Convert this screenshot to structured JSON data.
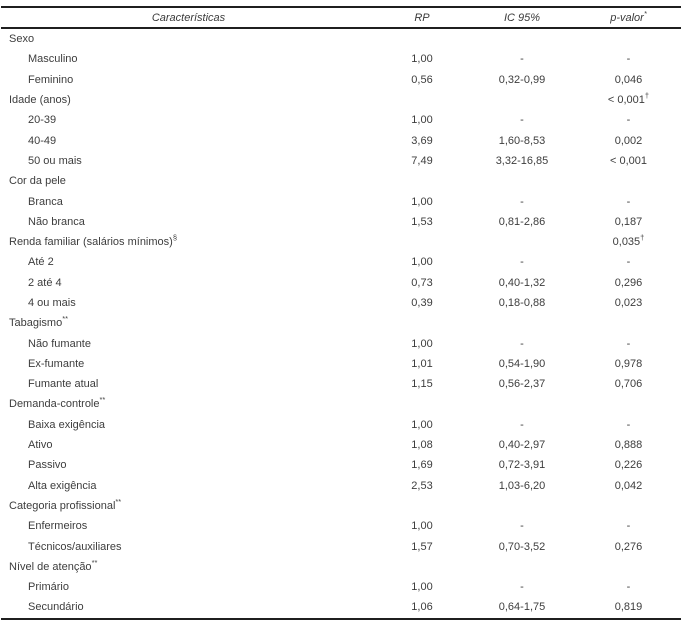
{
  "table": {
    "columns": [
      {
        "label": "Características",
        "sup": ""
      },
      {
        "label": "RP",
        "sup": ""
      },
      {
        "label": "IC 95%",
        "sup": ""
      },
      {
        "label": "p-valor",
        "sup": "*"
      }
    ],
    "rows": [
      {
        "label": "Sexo",
        "sup": "",
        "indent": false,
        "rp": "",
        "ic": "",
        "p": "",
        "psup": ""
      },
      {
        "label": "Masculino",
        "sup": "",
        "indent": true,
        "rp": "1,00",
        "ic": "-",
        "p": "-",
        "psup": ""
      },
      {
        "label": "Feminino",
        "sup": "",
        "indent": true,
        "rp": "0,56",
        "ic": "0,32-0,99",
        "p": "0,046",
        "psup": ""
      },
      {
        "label": "Idade (anos)",
        "sup": "",
        "indent": false,
        "rp": "",
        "ic": "",
        "p": "< 0,001",
        "psup": "†"
      },
      {
        "label": "20-39",
        "sup": "",
        "indent": true,
        "rp": "1,00",
        "ic": "-",
        "p": "-",
        "psup": ""
      },
      {
        "label": "40-49",
        "sup": "",
        "indent": true,
        "rp": "3,69",
        "ic": "1,60-8,53",
        "p": "0,002",
        "psup": ""
      },
      {
        "label": "50 ou mais",
        "sup": "",
        "indent": true,
        "rp": "7,49",
        "ic": "3,32-16,85",
        "p": "< 0,001",
        "psup": ""
      },
      {
        "label": "Cor da pele",
        "sup": "",
        "indent": false,
        "rp": "",
        "ic": "",
        "p": "",
        "psup": ""
      },
      {
        "label": "Branca",
        "sup": "",
        "indent": true,
        "rp": "1,00",
        "ic": "-",
        "p": "-",
        "psup": ""
      },
      {
        "label": "Não branca",
        "sup": "",
        "indent": true,
        "rp": "1,53",
        "ic": "0,81-2,86",
        "p": "0,187",
        "psup": ""
      },
      {
        "label": "Renda familiar (salários mínimos)",
        "sup": "§",
        "indent": false,
        "rp": "",
        "ic": "",
        "p": "0,035",
        "psup": "†"
      },
      {
        "label": "Até 2",
        "sup": "",
        "indent": true,
        "rp": "1,00",
        "ic": "-",
        "p": "-",
        "psup": ""
      },
      {
        "label": "2 até 4",
        "sup": "",
        "indent": true,
        "rp": "0,73",
        "ic": "0,40-1,32",
        "p": "0,296",
        "psup": ""
      },
      {
        "label": "4 ou mais",
        "sup": "",
        "indent": true,
        "rp": "0,39",
        "ic": "0,18-0,88",
        "p": "0,023",
        "psup": ""
      },
      {
        "label": "Tabagismo",
        "sup": "**",
        "indent": false,
        "rp": "",
        "ic": "",
        "p": "",
        "psup": ""
      },
      {
        "label": "Não fumante",
        "sup": "",
        "indent": true,
        "rp": "1,00",
        "ic": "-",
        "p": "-",
        "psup": ""
      },
      {
        "label": "Ex-fumante",
        "sup": "",
        "indent": true,
        "rp": "1,01",
        "ic": "0,54-1,90",
        "p": "0,978",
        "psup": ""
      },
      {
        "label": "Fumante atual",
        "sup": "",
        "indent": true,
        "rp": "1,15",
        "ic": "0,56-2,37",
        "p": "0,706",
        "psup": ""
      },
      {
        "label": "Demanda-controle",
        "sup": "**",
        "indent": false,
        "rp": "",
        "ic": "",
        "p": "",
        "psup": ""
      },
      {
        "label": "Baixa exigência",
        "sup": "",
        "indent": true,
        "rp": "1,00",
        "ic": "-",
        "p": "-",
        "psup": ""
      },
      {
        "label": "Ativo",
        "sup": "",
        "indent": true,
        "rp": "1,08",
        "ic": "0,40-2,97",
        "p": "0,888",
        "psup": ""
      },
      {
        "label": "Passivo",
        "sup": "",
        "indent": true,
        "rp": "1,69",
        "ic": "0,72-3,91",
        "p": "0,226",
        "psup": ""
      },
      {
        "label": "Alta exigência",
        "sup": "",
        "indent": true,
        "rp": "2,53",
        "ic": "1,03-6,20",
        "p": "0,042",
        "psup": ""
      },
      {
        "label": "Categoria profissional",
        "sup": "**",
        "indent": false,
        "rp": "",
        "ic": "",
        "p": "",
        "psup": ""
      },
      {
        "label": "Enfermeiros",
        "sup": "",
        "indent": true,
        "rp": "1,00",
        "ic": "-",
        "p": "-",
        "psup": ""
      },
      {
        "label": "Técnicos/auxiliares",
        "sup": "",
        "indent": true,
        "rp": "1,57",
        "ic": "0,70-3,52",
        "p": "0,276",
        "psup": ""
      },
      {
        "label": "Nível de atenção",
        "sup": "**",
        "indent": false,
        "rp": "",
        "ic": "",
        "p": "",
        "psup": ""
      },
      {
        "label": "Primário",
        "sup": "",
        "indent": true,
        "rp": "1,00",
        "ic": "-",
        "p": "-",
        "psup": ""
      },
      {
        "label": "Secundário",
        "sup": "",
        "indent": true,
        "rp": "1,06",
        "ic": "0,64-1,75",
        "p": "0,819",
        "psup": ""
      }
    ],
    "colors": {
      "rule": "#1f1f1f",
      "text": "#3d3d3d",
      "background": "#ffffff"
    }
  }
}
